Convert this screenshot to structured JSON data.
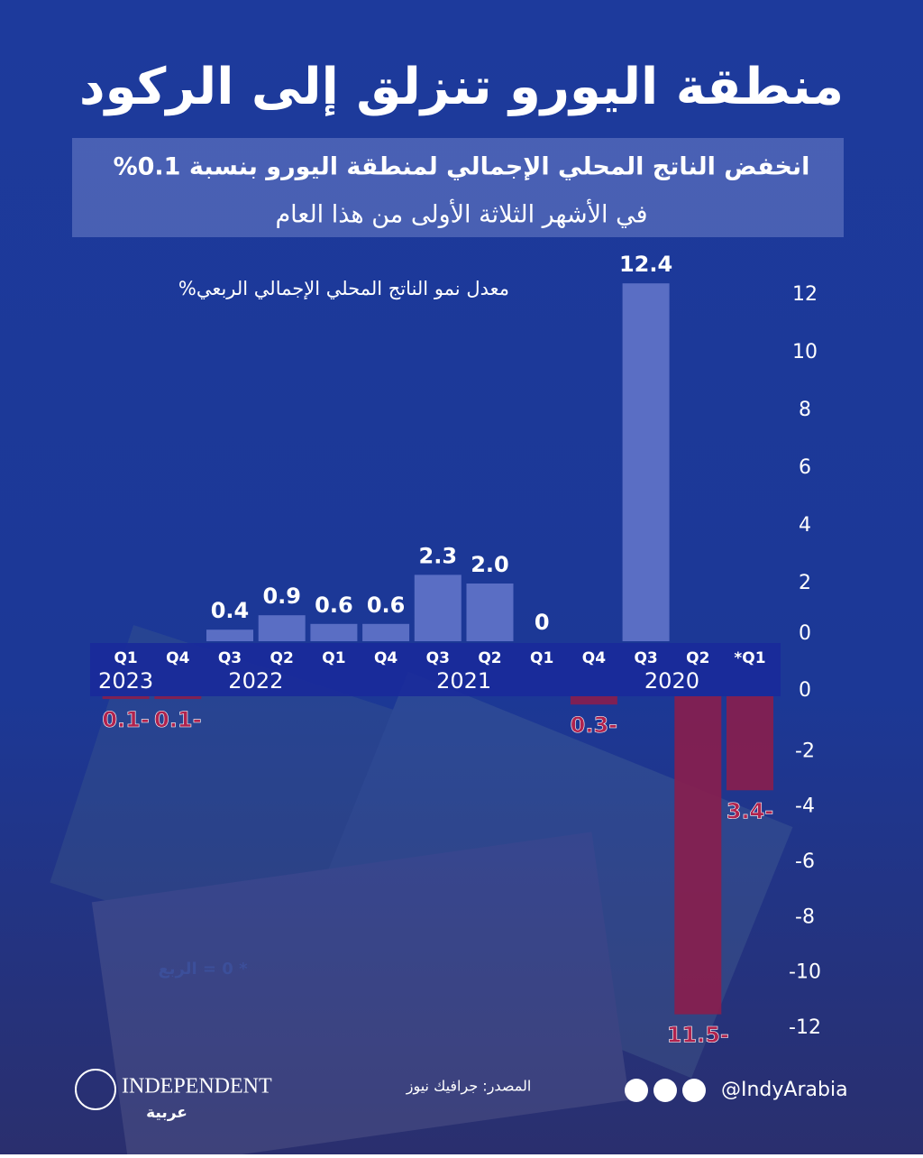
{
  "chart_data": {
    "type": "bar",
    "title": "منطقة اليورو تنزلق إلى الركود",
    "subtitle": [
      "انخفض الناتج المحلي الإجمالي لمنطقة اليورو بنسبة 0.1%",
      "في الأشهر الثلاثة الأولى من هذا العام"
    ],
    "y_label": "معدل نمو الناتج المحلي الإجمالي الربعي%",
    "groups": [
      {
        "label": "2020",
        "categories": [
          "*Q1",
          "Q2",
          "Q3",
          "Q4"
        ]
      },
      {
        "label": "2021",
        "categories": [
          "Q1",
          "Q2",
          "Q3",
          "Q4"
        ]
      },
      {
        "label": "2022",
        "categories": [
          "Q1",
          "Q2",
          "Q3",
          "Q4"
        ]
      },
      {
        "label": "2023",
        "categories": [
          "Q1"
        ]
      }
    ],
    "values": [
      -3.4,
      -11.5,
      12.4,
      -0.3,
      0,
      2,
      2.3,
      0.6,
      0.6,
      0.9,
      0.4,
      -0.1,
      -0.1
    ],
    "value_labels": [
      "3.4-",
      "11.5-",
      "12.4",
      "0.3-",
      "0",
      "2.0",
      "2.3",
      "0.6",
      "0.6",
      "0.9",
      "0.4",
      "0.1-",
      "0.1-"
    ],
    "positive_color": "#6274c9",
    "negative_color": "#8a1e4c",
    "ylim": [
      -12,
      12
    ],
    "yticks": [
      12,
      10,
      8,
      6,
      4,
      2,
      0,
      -2,
      -4,
      -6,
      -8,
      -10,
      -12
    ],
    "note": "* 0 = الربع",
    "source": "المصدر: جرافيك نيوز",
    "brand": "INDEPENDENT",
    "brand_sub": "عربية",
    "handle": "@IndyArabia"
  }
}
